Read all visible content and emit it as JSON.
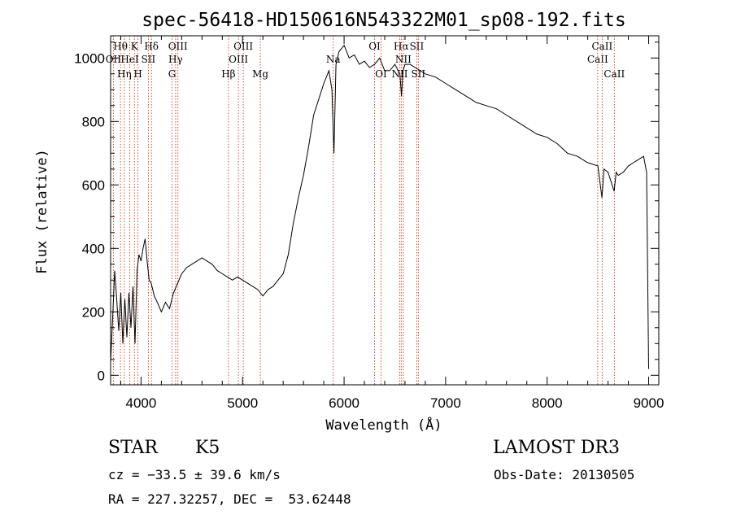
{
  "chart_data": {
    "type": "line",
    "title": "spec-56418-HD150616N543322M01_sp08-192.fits",
    "xlabel": "Wavelength (Å)",
    "ylabel": "Flux (relative)",
    "xlim": [
      3700,
      9100
    ],
    "ylim": [
      -30,
      1070
    ],
    "xticks": [
      4000,
      5000,
      6000,
      7000,
      8000,
      9000
    ],
    "yticks": [
      0,
      200,
      400,
      600,
      800,
      1000
    ],
    "grid": false,
    "series": [
      {
        "x": [
          3700,
          3720,
          3740,
          3760,
          3780,
          3800,
          3820,
          3840,
          3860,
          3880,
          3900,
          3920,
          3940,
          3960,
          3980,
          4000,
          4020,
          4040,
          4060,
          4080,
          4100,
          4130,
          4160,
          4200,
          4240,
          4280,
          4320,
          4360,
          4400,
          4450,
          4500,
          4550,
          4600,
          4650,
          4700,
          4750,
          4800,
          4850,
          4900,
          4950,
          5000,
          5050,
          5100,
          5150,
          5200,
          5250,
          5300,
          5350,
          5400,
          5450,
          5500,
          5550,
          5600,
          5650,
          5700,
          5750,
          5800,
          5850,
          5880,
          5900,
          5920,
          5950,
          6000,
          6050,
          6100,
          6150,
          6200,
          6250,
          6300,
          6350,
          6400,
          6450,
          6500,
          6550,
          6565,
          6580,
          6600,
          6650,
          6700,
          6750,
          6800,
          6900,
          7000,
          7100,
          7200,
          7300,
          7400,
          7500,
          7600,
          7700,
          7800,
          7900,
          8000,
          8100,
          8200,
          8300,
          8400,
          8500,
          8540,
          8560,
          8600,
          8660,
          8680,
          8700,
          8750,
          8800,
          8850,
          8900,
          8950,
          8980,
          9000
        ],
        "y": [
          40,
          180,
          330,
          240,
          140,
          260,
          100,
          240,
          120,
          260,
          150,
          280,
          100,
          330,
          380,
          360,
          400,
          430,
          360,
          300,
          290,
          250,
          230,
          200,
          230,
          210,
          260,
          290,
          320,
          340,
          350,
          360,
          370,
          360,
          350,
          330,
          320,
          310,
          300,
          310,
          300,
          290,
          280,
          270,
          250,
          270,
          280,
          300,
          320,
          380,
          480,
          560,
          630,
          720,
          820,
          870,
          920,
          960,
          900,
          700,
          980,
          1020,
          1040,
          1000,
          1010,
          980,
          990,
          970,
          980,
          1000,
          960,
          960,
          980,
          950,
          880,
          960,
          980,
          980,
          970,
          960,
          950,
          940,
          920,
          900,
          880,
          860,
          850,
          840,
          820,
          800,
          780,
          760,
          750,
          730,
          700,
          690,
          670,
          660,
          560,
          650,
          640,
          580,
          640,
          630,
          640,
          660,
          670,
          680,
          690,
          640,
          20
        ]
      }
    ],
    "line_marks": [
      {
        "label": "Hθ",
        "x": 3797,
        "row": 1
      },
      {
        "label": "OII",
        "x": 3727,
        "row": 2
      },
      {
        "label": "Hη",
        "x": 3835,
        "row": 3
      },
      {
        "label": "HeI",
        "x": 3889,
        "row": 2
      },
      {
        "label": "K",
        "x": 3934,
        "row": 1
      },
      {
        "label": "SII",
        "x": 4072,
        "row": 2
      },
      {
        "label": "Hδ",
        "x": 4102,
        "row": 1
      },
      {
        "label": "H",
        "x": 3969,
        "row": 3
      },
      {
        "label": "OIII",
        "x": 4363,
        "row": 1
      },
      {
        "label": "Hγ",
        "x": 4340,
        "row": 2
      },
      {
        "label": "G",
        "x": 4305,
        "row": 3
      },
      {
        "label": "Hβ",
        "x": 4861,
        "row": 3
      },
      {
        "label": "OIII",
        "x": 4959,
        "row": 2
      },
      {
        "label": "OIII",
        "x": 5007,
        "row": 1
      },
      {
        "label": "Mg",
        "x": 5175,
        "row": 3
      },
      {
        "label": "Na",
        "x": 5893,
        "row": 2
      },
      {
        "label": "OI",
        "x": 6300,
        "row": 1
      },
      {
        "label": "OI",
        "x": 6364,
        "row": 3
      },
      {
        "label": "Hα",
        "x": 6563,
        "row": 1
      },
      {
        "label": "NII",
        "x": 6548,
        "row": 3
      },
      {
        "label": "NII",
        "x": 6583,
        "row": 2
      },
      {
        "label": "SII",
        "x": 6716,
        "row": 1
      },
      {
        "label": "SII",
        "x": 6731,
        "row": 3
      },
      {
        "label": "CaII",
        "x": 8498,
        "row": 2
      },
      {
        "label": "CaII",
        "x": 8542,
        "row": 1
      },
      {
        "label": "CaII",
        "x": 8662,
        "row": 3
      }
    ]
  },
  "info": {
    "class": "STAR",
    "subclass": "K5",
    "survey": "LAMOST DR3",
    "cz": "cz = −33.5 ± 39.6 km/s",
    "obs_date": "Obs-Date: 20130505",
    "coords": "RA = 227.32257, DEC =  53.62448"
  },
  "colors": {
    "spectrum": "#000000",
    "line_marker": "#cc2200",
    "axes": "#000000"
  }
}
